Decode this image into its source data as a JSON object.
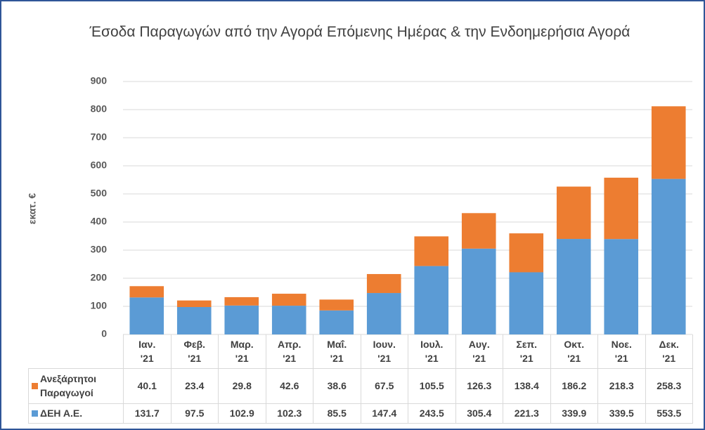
{
  "chart_data": {
    "type": "stacked_bar",
    "title": "Έσοδα Παραγωγών από την Αγορά Επόμενης Ημέρας & την Ενδοημερήσια Αγορά",
    "y_label": "εκατ. €",
    "categories": [
      "Ιαν. '21",
      "Φεβ. '21",
      "Μαρ. '21",
      "Απρ. '21",
      "Μαΐ. '21",
      "Ιουν. '21",
      "Ιουλ. '21",
      "Αυγ. '21",
      "Σεπ. '21",
      "Οκτ. '21",
      "Νοε. '21",
      "Δεκ. '21"
    ],
    "series": [
      {
        "name": "Ανεξάρτητοι Παραγωγοί",
        "color": "#ed7d31",
        "values": [
          40.1,
          23.4,
          29.8,
          42.6,
          38.6,
          67.5,
          105.5,
          126.3,
          138.4,
          186.2,
          218.3,
          258.3
        ]
      },
      {
        "name": "ΔΕΗ Α.Ε.",
        "color": "#5b9bd5",
        "values": [
          131.7,
          97.5,
          102.9,
          102.3,
          85.5,
          147.4,
          243.5,
          305.4,
          221.3,
          339.9,
          339.5,
          553.5
        ]
      }
    ],
    "stack_order": [
      1,
      0
    ],
    "ylim": [
      0,
      900
    ],
    "yticks": [
      0,
      100,
      200,
      300,
      400,
      500,
      600,
      700,
      800,
      900
    ],
    "grid": true
  }
}
